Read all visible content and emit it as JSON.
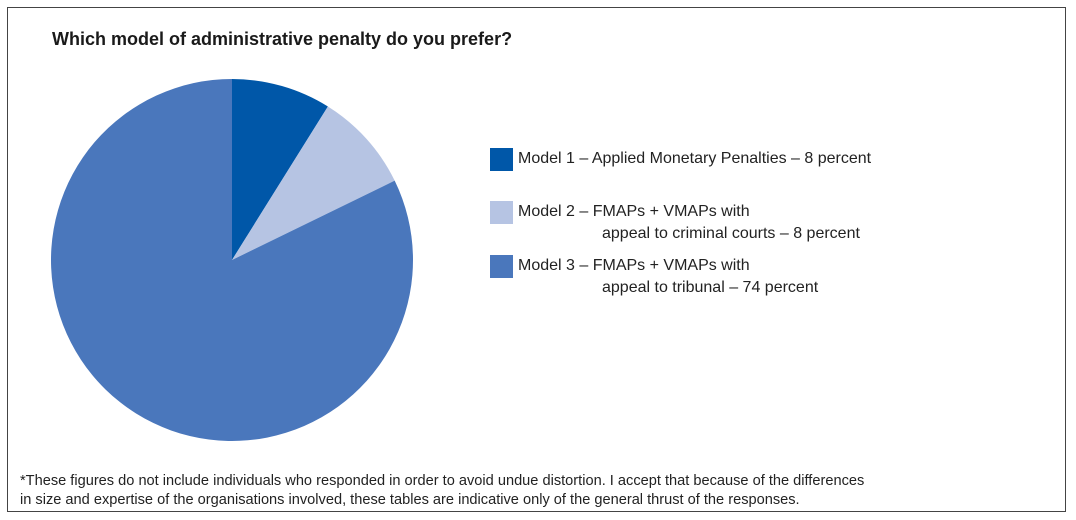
{
  "chart_data": {
    "type": "pie",
    "title": "Which model of administrative penalty do you prefer?",
    "slices": [
      {
        "label": "Model 1 – Applied Monetary Penalties – 8 percent",
        "value": 8,
        "color": "#0057a8"
      },
      {
        "label": "Model 2 – FMAPs + VMAPs with appeal to criminal courts – 8 percent",
        "value": 8,
        "color": "#b6c4e3"
      },
      {
        "label": "Model 3 – FMAPs + VMAPs with appeal to tribunal – 74 percent",
        "value": 74,
        "color": "#4a77bc"
      }
    ]
  },
  "legend": [
    {
      "line1": "Model 1 – Applied Monetary Penalties – 8 percent",
      "line2": ""
    },
    {
      "line1": "Model 2 – FMAPs + VMAPs with",
      "line2": "appeal to criminal courts – 8 percent"
    },
    {
      "line1": "Model 3 – FMAPs + VMAPs with",
      "line2": "appeal to tribunal – 74 percent"
    }
  ],
  "footnote": {
    "line1": "*These figures do not include individuals who responded in order to avoid undue distortion. I accept that because of the differences",
    "line2": "in size and expertise of the organisations involved, these tables are indicative only of the general thrust of the responses."
  }
}
